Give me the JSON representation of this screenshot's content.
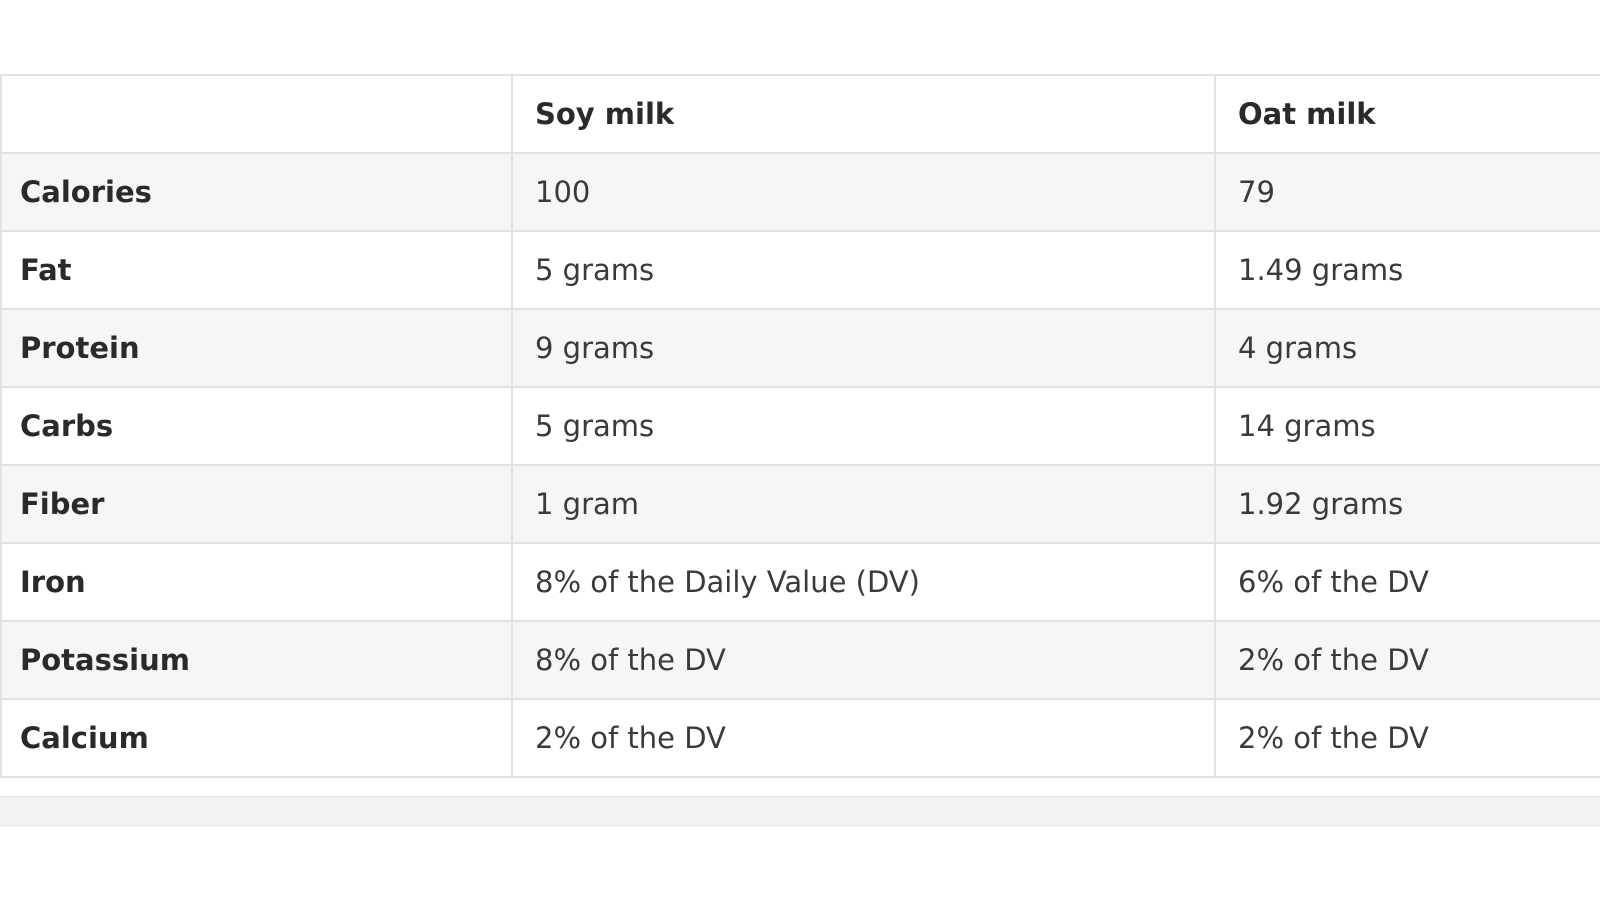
{
  "table": {
    "columns": [
      "Soy milk",
      "Oat milk"
    ],
    "rows": [
      [
        "Calories",
        "100",
        "79"
      ],
      [
        "Fat",
        "5 grams",
        "1.49 grams"
      ],
      [
        "Protein",
        "9 grams",
        "4 grams"
      ],
      [
        "Carbs",
        "5 grams",
        "14 grams"
      ],
      [
        "Fiber",
        "1 gram",
        "1.92 grams"
      ],
      [
        "Iron",
        "8% of the Daily Value (DV)",
        "6% of the DV"
      ],
      [
        "Potassium",
        "8% of the DV",
        "2% of the DV"
      ],
      [
        "Calcium",
        "2% of the DV",
        "2% of the DV"
      ]
    ]
  }
}
